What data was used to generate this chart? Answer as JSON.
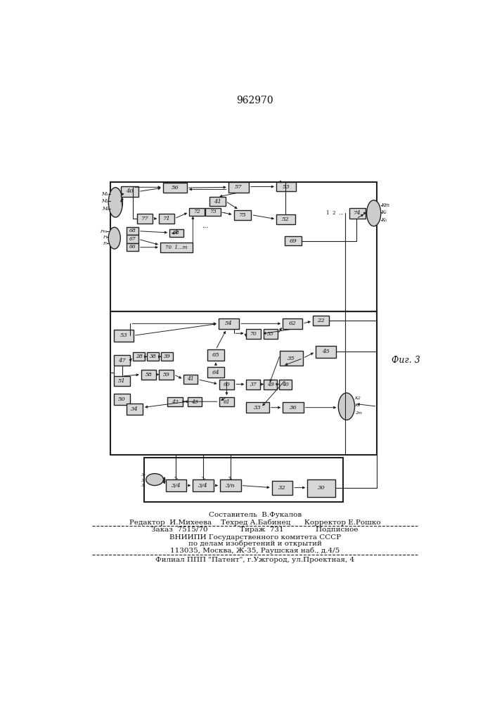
{
  "title": "962970",
  "fig_label": "Фиг. 3",
  "footer": [
    "Составитель  В.Фукалов",
    "Редактор  И.Михеева    Техред А.Бабинец      Корректор Е.Рошко",
    "Заказ  7515/70              Тираж  731              Подписное",
    "ВНИИПИ Государственного комитета СССР",
    "по делам изобретений и открытий",
    "113035, Москва, Ж-35, Раушская наб., д.4/5",
    "Филиал ППП \"Патент\", г.Ужгород, ул.Проектная, 4"
  ],
  "bg": "#ffffff",
  "lc": "#222222",
  "fc": "#d8d8d8"
}
